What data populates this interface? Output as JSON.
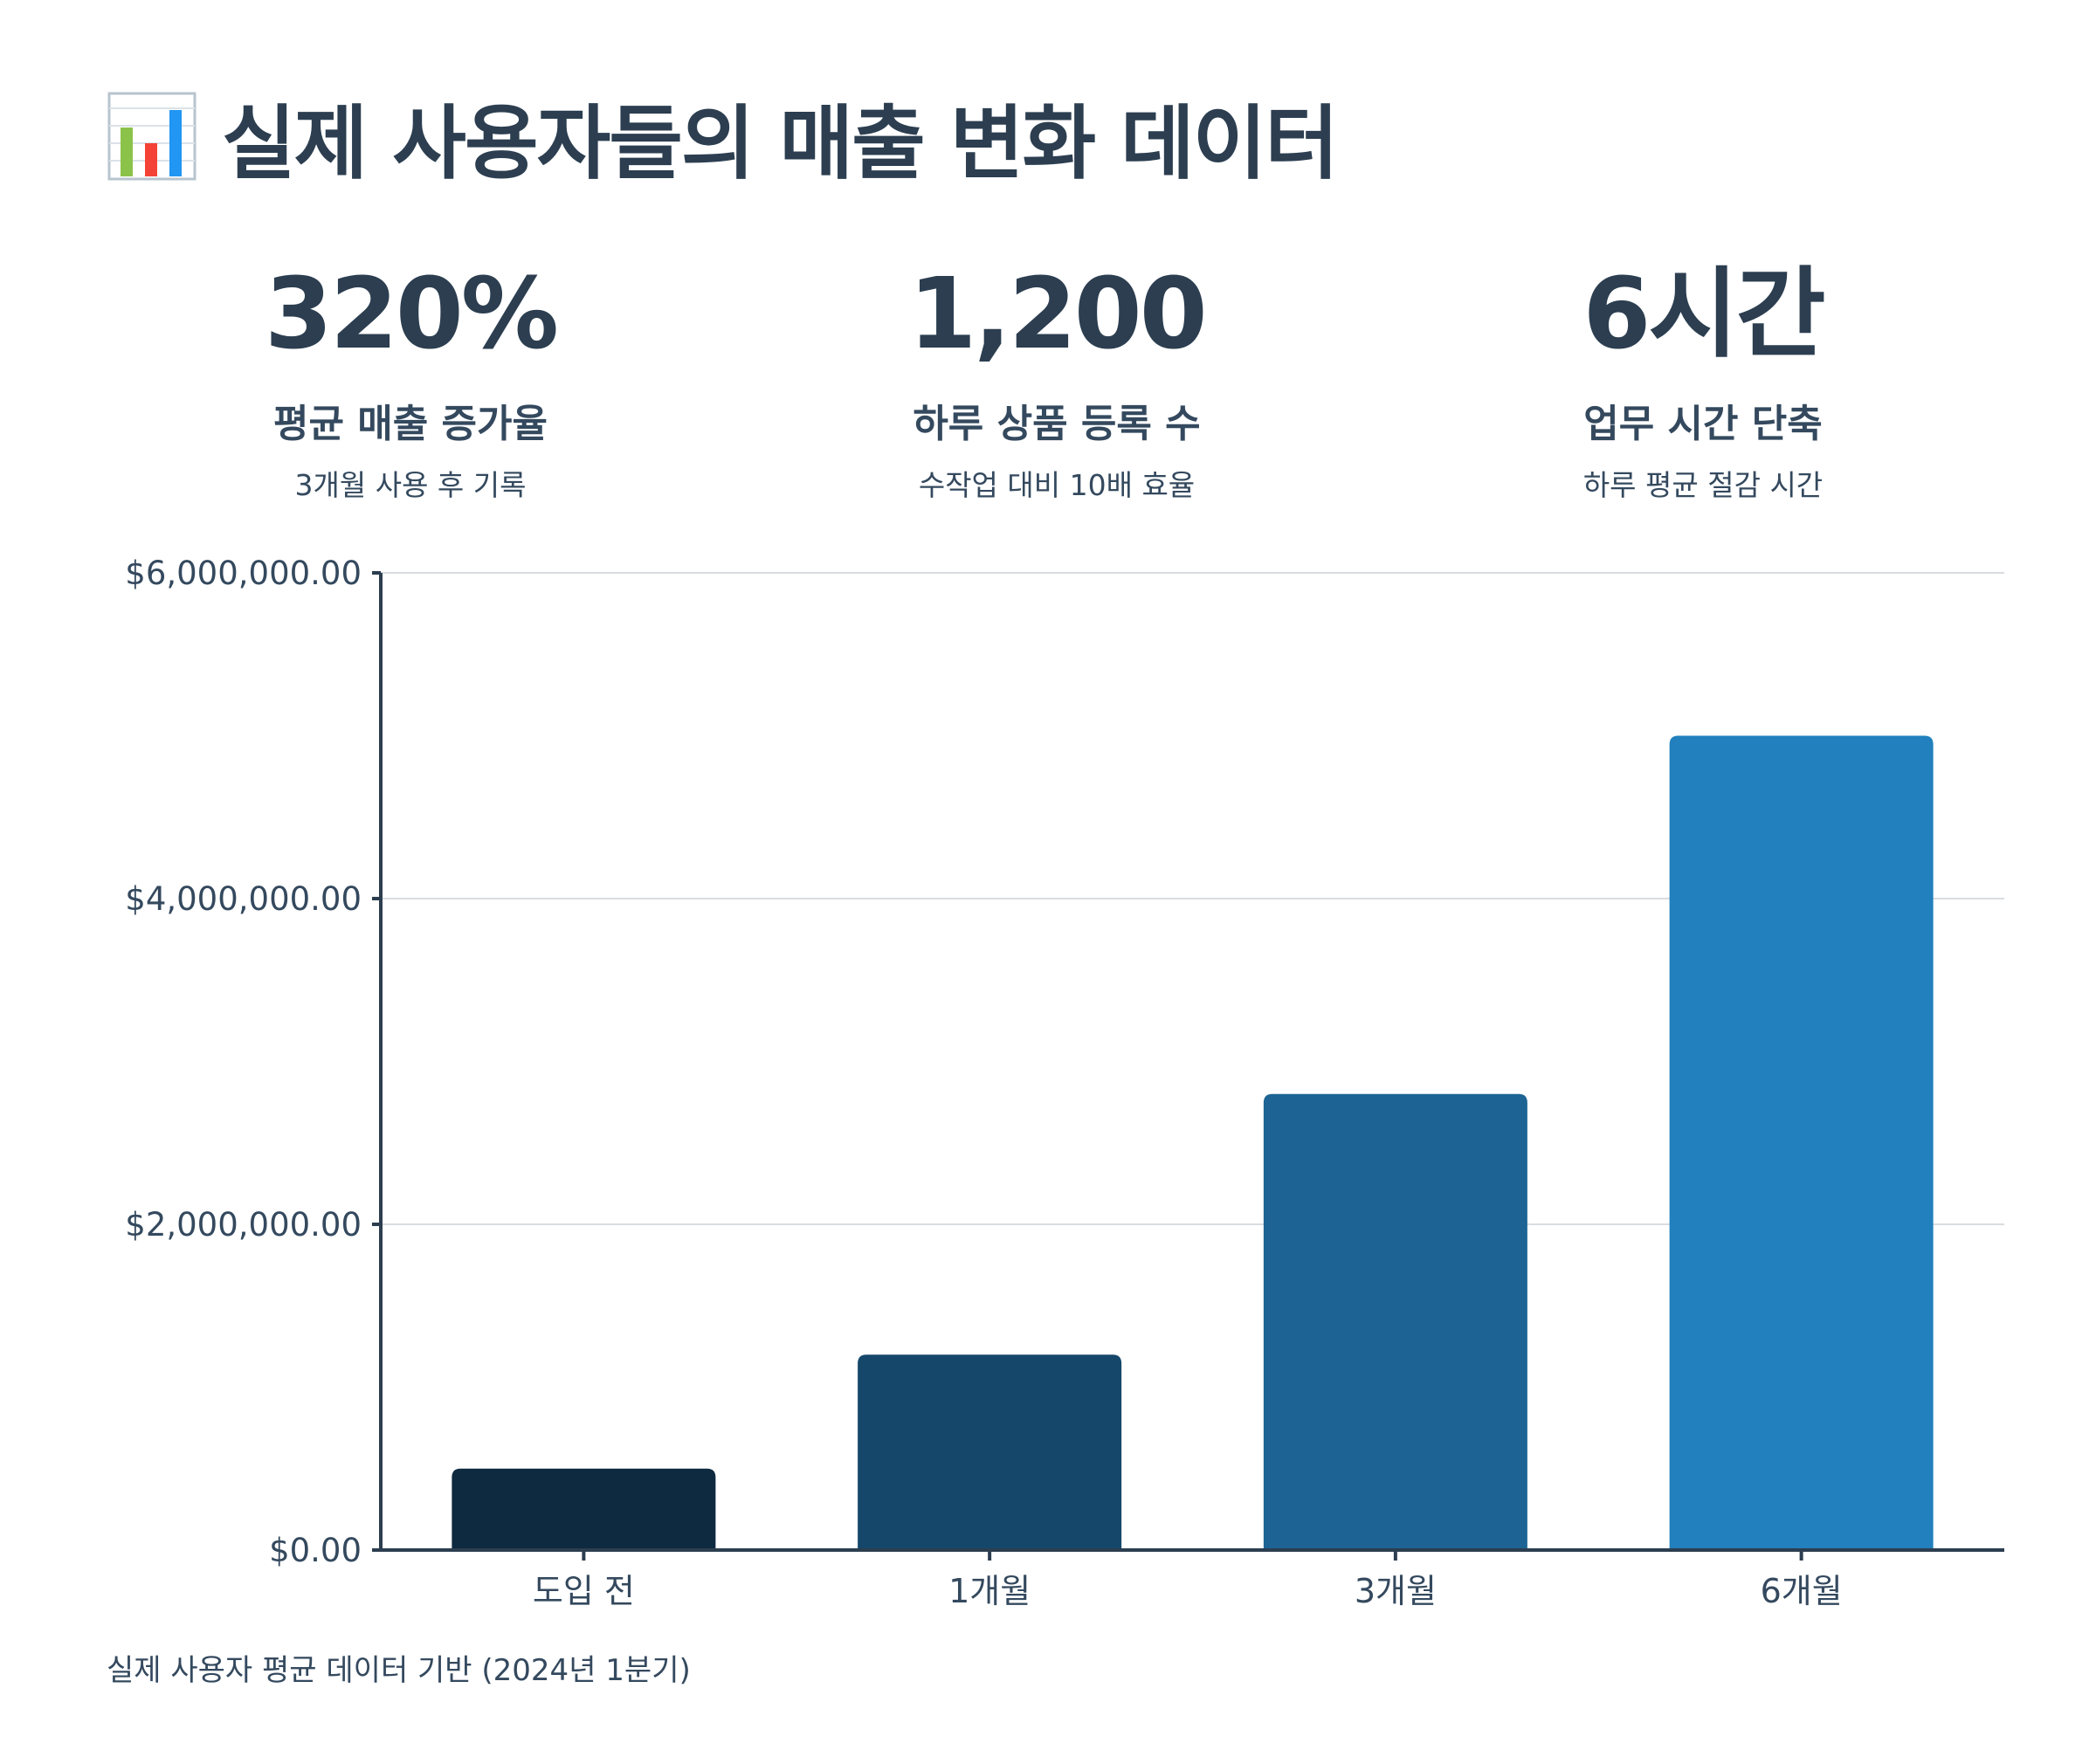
{
  "header": {
    "title": "실제 사용자들의 매출 변화 데이터",
    "icon": "bar-chart-icon"
  },
  "stats": [
    {
      "value": "320%",
      "label": "평균 매출 증가율",
      "note": "3개월 사용 후 기록"
    },
    {
      "value": "1,200",
      "label": "하루 상품 등록 수",
      "note": "수작업 대비 10배 효율"
    },
    {
      "value": "6시간",
      "label": "업무 시간 단축",
      "note": "하루 평균 절감 시간"
    }
  ],
  "chart_data": {
    "type": "bar",
    "categories": [
      "도입 전",
      "1개월",
      "3개월",
      "6개월"
    ],
    "values": [
      500000,
      1200000,
      2800000,
      5000000
    ],
    "ylim": [
      0,
      6000000
    ],
    "yticks": [
      0,
      2000000,
      4000000,
      6000000
    ],
    "ytick_labels": [
      "$0.00",
      "$2,000,000.00",
      "$4,000,000.00",
      "$6,000,000.00"
    ],
    "colors": [
      "#0e2a40",
      "#15476a",
      "#1d6494",
      "#2180bd"
    ],
    "grid": true,
    "title": "",
    "xlabel": "",
    "ylabel": ""
  },
  "footnote": "실제 사용자 평균 데이터 기반 (2024년 1분기)"
}
